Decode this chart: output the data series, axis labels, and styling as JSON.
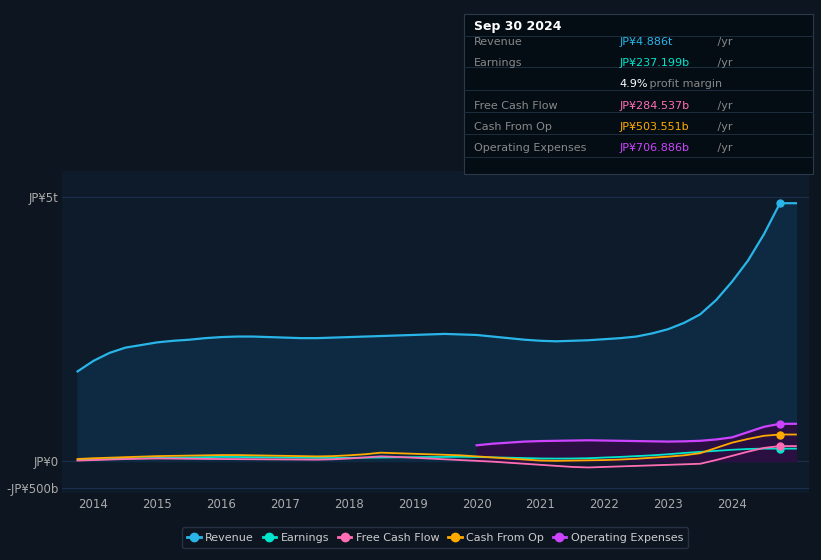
{
  "bg_color": "#0d1520",
  "plot_bg_color": "#0d1b2a",
  "ylim": [
    -600,
    5500
  ],
  "xlim_left": 2013.5,
  "xlim_right": 2025.2,
  "x_ticks": [
    2014,
    2015,
    2016,
    2017,
    2018,
    2019,
    2020,
    2021,
    2022,
    2023,
    2024
  ],
  "y_ticks": [
    5000,
    0,
    -500
  ],
  "y_tick_labels": [
    "JP¥5t",
    "JP¥0",
    "-JP¥500b"
  ],
  "revenue_color": "#29b5e8",
  "earnings_color": "#00e5cc",
  "fcf_color": "#ff6eb4",
  "cfo_color": "#ffaa00",
  "opex_color": "#cc44ff",
  "revenue_fill": "#0d2a42",
  "opex_fill": "#2a1040",
  "grid_color": "#1e3050",
  "info_box": {
    "title": "Sep 30 2024",
    "rows": [
      {
        "label": "Revenue",
        "value": "JP¥4.886t",
        "suffix": " /yr",
        "color": "#29b5e8"
      },
      {
        "label": "Earnings",
        "value": "JP¥237.199b",
        "suffix": " /yr",
        "color": "#00e5cc"
      },
      {
        "label": "",
        "value": "4.9%",
        "suffix": " profit margin",
        "color": "#ffffff"
      },
      {
        "label": "Free Cash Flow",
        "value": "JP¥284.537b",
        "suffix": " /yr",
        "color": "#ff6eb4"
      },
      {
        "label": "Cash From Op",
        "value": "JP¥503.551b",
        "suffix": " /yr",
        "color": "#ffaa00"
      },
      {
        "label": "Operating Expenses",
        "value": "JP¥706.886b",
        "suffix": " /yr",
        "color": "#cc44ff"
      }
    ]
  },
  "years": [
    2013.75,
    2014.0,
    2014.25,
    2014.5,
    2014.75,
    2015.0,
    2015.25,
    2015.5,
    2015.75,
    2016.0,
    2016.25,
    2016.5,
    2016.75,
    2017.0,
    2017.25,
    2017.5,
    2017.75,
    2018.0,
    2018.25,
    2018.5,
    2018.75,
    2019.0,
    2019.25,
    2019.5,
    2019.75,
    2020.0,
    2020.25,
    2020.5,
    2020.75,
    2021.0,
    2021.25,
    2021.5,
    2021.75,
    2022.0,
    2022.25,
    2022.5,
    2022.75,
    2023.0,
    2023.25,
    2023.5,
    2023.75,
    2024.0,
    2024.25,
    2024.5,
    2024.75,
    2025.0
  ],
  "revenue": [
    1700,
    1900,
    2050,
    2150,
    2200,
    2250,
    2280,
    2300,
    2330,
    2350,
    2360,
    2360,
    2350,
    2340,
    2330,
    2330,
    2340,
    2350,
    2360,
    2370,
    2380,
    2390,
    2400,
    2410,
    2400,
    2390,
    2360,
    2330,
    2300,
    2280,
    2270,
    2280,
    2290,
    2310,
    2330,
    2360,
    2420,
    2500,
    2620,
    2780,
    3050,
    3400,
    3800,
    4300,
    4886,
    4886
  ],
  "earnings": [
    20,
    30,
    40,
    50,
    55,
    60,
    65,
    70,
    75,
    80,
    78,
    75,
    72,
    68,
    65,
    62,
    60,
    62,
    65,
    68,
    72,
    75,
    78,
    80,
    82,
    78,
    72,
    65,
    58,
    50,
    48,
    50,
    55,
    68,
    80,
    95,
    110,
    130,
    155,
    175,
    195,
    215,
    230,
    237,
    237,
    237
  ],
  "fcf": [
    10,
    20,
    30,
    40,
    45,
    50,
    48,
    45,
    42,
    40,
    38,
    36,
    34,
    32,
    30,
    28,
    35,
    50,
    70,
    90,
    80,
    65,
    50,
    35,
    20,
    5,
    -10,
    -30,
    -50,
    -70,
    -90,
    -110,
    -120,
    -110,
    -100,
    -90,
    -80,
    -70,
    -60,
    -50,
    20,
    100,
    180,
    250,
    285,
    285
  ],
  "cfo": [
    40,
    55,
    65,
    75,
    85,
    95,
    100,
    105,
    110,
    115,
    115,
    110,
    105,
    100,
    95,
    90,
    95,
    110,
    130,
    160,
    150,
    140,
    130,
    120,
    110,
    90,
    70,
    50,
    30,
    10,
    5,
    10,
    15,
    20,
    30,
    45,
    65,
    85,
    110,
    150,
    250,
    350,
    420,
    480,
    504,
    504
  ],
  "opex": [
    0,
    0,
    0,
    0,
    0,
    0,
    0,
    0,
    0,
    0,
    0,
    0,
    0,
    0,
    0,
    0,
    0,
    0,
    0,
    0,
    0,
    0,
    0,
    0,
    0,
    300,
    330,
    350,
    370,
    380,
    385,
    390,
    395,
    390,
    385,
    380,
    375,
    370,
    375,
    385,
    410,
    450,
    550,
    650,
    707,
    707
  ],
  "legend": [
    {
      "label": "Revenue",
      "color": "#29b5e8"
    },
    {
      "label": "Earnings",
      "color": "#00e5cc"
    },
    {
      "label": "Free Cash Flow",
      "color": "#ff6eb4"
    },
    {
      "label": "Cash From Op",
      "color": "#ffaa00"
    },
    {
      "label": "Operating Expenses",
      "color": "#cc44ff"
    }
  ]
}
